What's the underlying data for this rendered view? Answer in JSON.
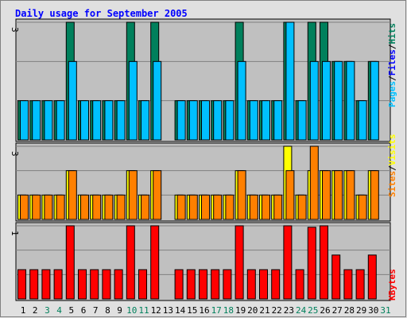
{
  "chart_data": {
    "type": "bar",
    "title": "Daily usage for September 2005",
    "x": [
      "1",
      "2",
      "3",
      "4",
      "5",
      "6",
      "7",
      "8",
      "9",
      "10",
      "11",
      "12",
      "13",
      "14",
      "15",
      "16",
      "17",
      "18",
      "19",
      "20",
      "21",
      "22",
      "23",
      "24",
      "25",
      "26",
      "27",
      "28",
      "29",
      "30",
      "31"
    ],
    "weekend_days": [
      3,
      4,
      10,
      11,
      17,
      18,
      24,
      25,
      31
    ],
    "colors": {
      "title": "#0000ff",
      "plot_bg": "#c0c0c0",
      "frame_bg": "#e0e0e0",
      "hits": "#00805c",
      "files": "#0000ff",
      "pages": "#00c0ff",
      "visits": "#ffff00",
      "sites": "#ff8000",
      "kbytes": "#ff0000",
      "weekday_label": "#000000",
      "weekend_label": "#00805c"
    },
    "panels": [
      {
        "name": "hits-files-pages",
        "y_max_label": "3",
        "ylim": [
          0,
          3
        ],
        "side_label": [
          "Pages",
          "Files",
          "Hits"
        ],
        "series": [
          {
            "name": "Hits",
            "color": "#00805c",
            "values": [
              1,
              1,
              1,
              1,
              3,
              1,
              1,
              1,
              1,
              3,
              1,
              3,
              null,
              1,
              1,
              1,
              1,
              1,
              3,
              1,
              1,
              1,
              3,
              1,
              3,
              3,
              2,
              2,
              1,
              2,
              null
            ]
          },
          {
            "name": "Pages",
            "color": "#00c0ff",
            "values": [
              1,
              1,
              1,
              1,
              2,
              1,
              1,
              1,
              1,
              2,
              1,
              2,
              null,
              1,
              1,
              1,
              1,
              1,
              2,
              1,
              1,
              1,
              3,
              1,
              2,
              2,
              2,
              2,
              1,
              2,
              null
            ]
          }
        ]
      },
      {
        "name": "visits-sites",
        "y_max_label": "3",
        "ylim": [
          0,
          3
        ],
        "side_label": [
          "Sites",
          "Visits"
        ],
        "series": [
          {
            "name": "Visits",
            "color": "#ffff00",
            "values": [
              1,
              1,
              1,
              1,
              2,
              1,
              1,
              1,
              1,
              2,
              1,
              2,
              null,
              1,
              1,
              1,
              1,
              1,
              2,
              1,
              1,
              1,
              3,
              1,
              2,
              2,
              2,
              2,
              1,
              2,
              null
            ]
          },
          {
            "name": "Sites",
            "color": "#ff8000",
            "values": [
              1,
              1,
              1,
              1,
              2,
              1,
              1,
              1,
              1,
              2,
              1,
              2,
              null,
              1,
              1,
              1,
              1,
              1,
              2,
              1,
              1,
              1,
              2,
              1,
              3,
              2,
              2,
              2,
              1,
              2,
              null
            ]
          }
        ]
      },
      {
        "name": "kbytes",
        "y_max_label": "1",
        "ylim": [
          0,
          1
        ],
        "side_label": [
          "KBytes"
        ],
        "series": [
          {
            "name": "KBytes",
            "color": "#ff0000",
            "values": [
              0.4,
              0.4,
              0.4,
              0.4,
              1.0,
              0.4,
              0.4,
              0.4,
              0.4,
              1.0,
              0.4,
              1.0,
              null,
              0.4,
              0.4,
              0.4,
              0.4,
              0.4,
              1.0,
              0.4,
              0.4,
              0.4,
              1.0,
              0.4,
              0.98,
              1.0,
              0.6,
              0.4,
              0.4,
              0.6,
              null
            ]
          }
        ]
      }
    ]
  }
}
